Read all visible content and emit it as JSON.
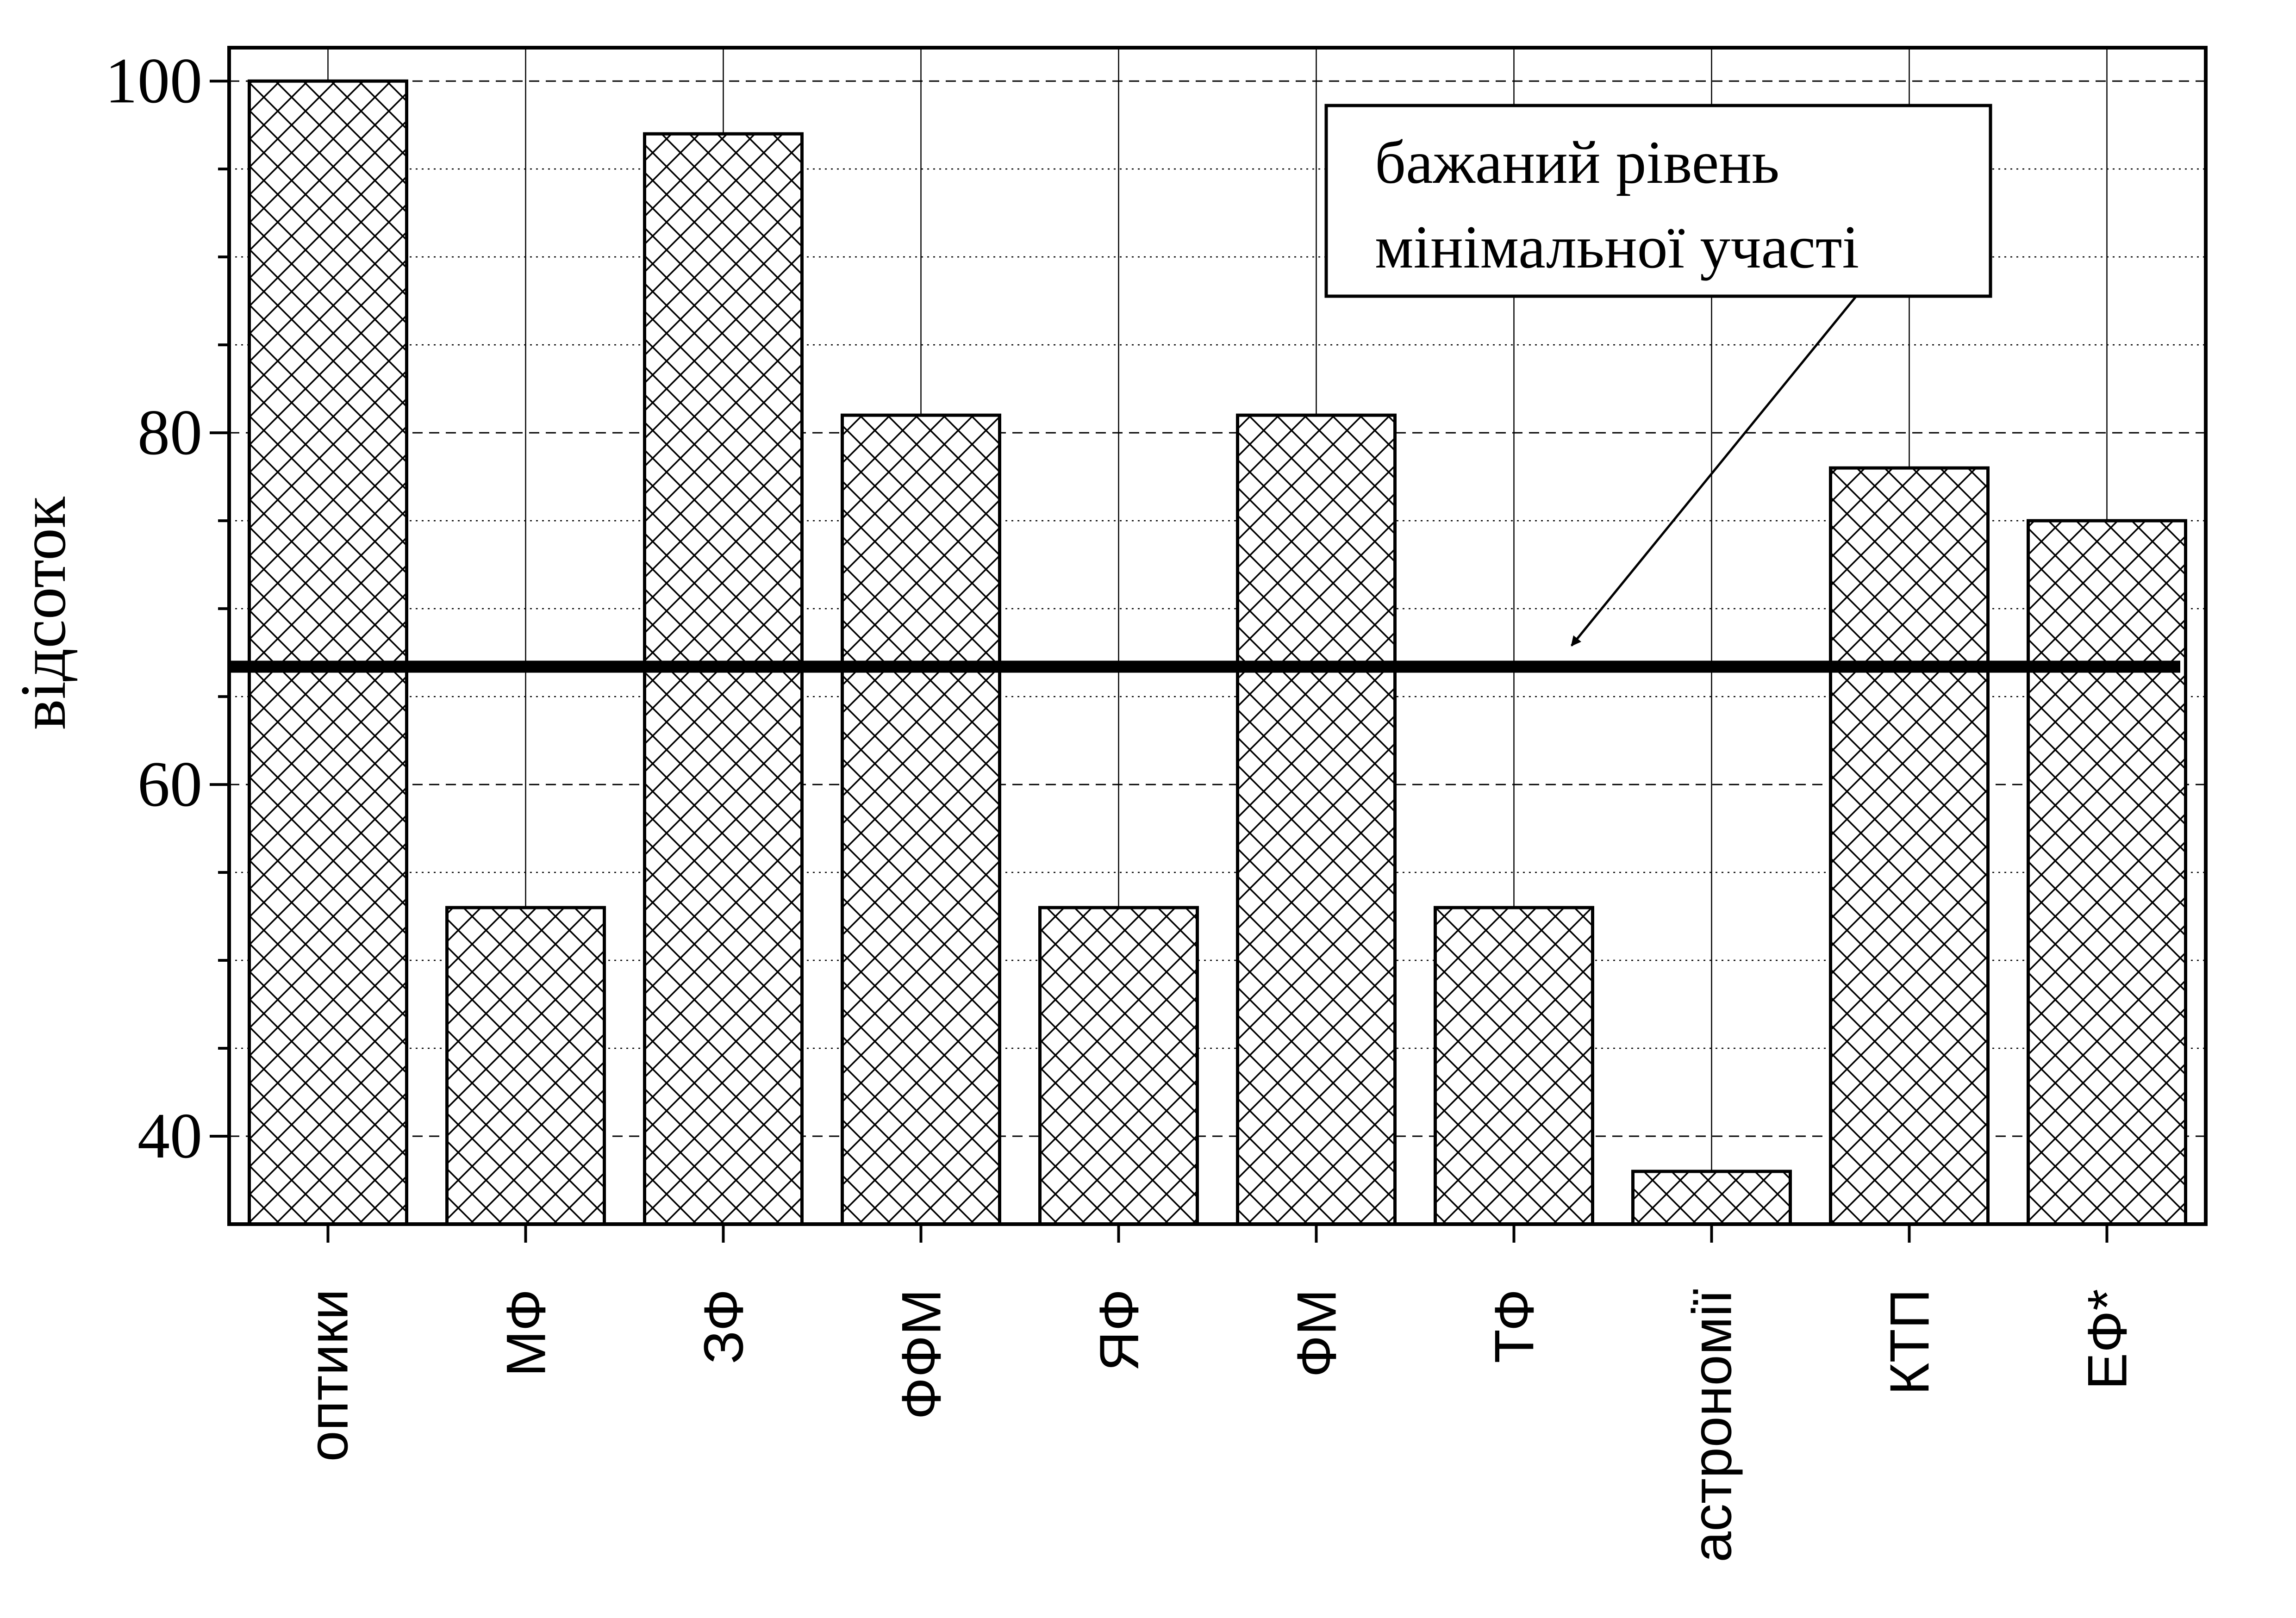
{
  "chart_data": {
    "type": "bar",
    "title": "",
    "xlabel": "",
    "ylabel": "відсоток",
    "ylim": [
      35,
      101.9
    ],
    "y_ticks": [
      40,
      60,
      80,
      100
    ],
    "y_tick_labels": [
      "40",
      "60",
      "80",
      "100"
    ],
    "y_minor_step": 5,
    "categories": [
      "оптики",
      "МФ",
      "ЗФ",
      "ФФМ",
      "ЯФ",
      "ФМ",
      "ТФ",
      "астрономії",
      "КТП",
      "ЕФ*"
    ],
    "values": [
      100,
      53,
      97,
      81,
      53,
      81,
      53,
      38,
      78,
      75
    ],
    "bar_fill": "crosshatch",
    "grid": true,
    "reference_line": {
      "value": 66.7,
      "annotation_lines": [
        "бажаний рівень",
        "мінімальної участі"
      ]
    }
  }
}
